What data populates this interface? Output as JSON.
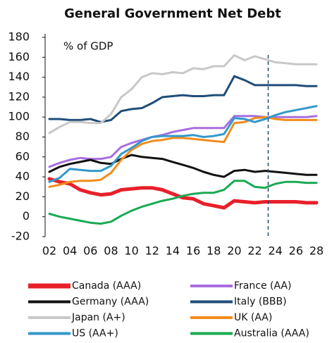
{
  "chart_data": {
    "type": "line",
    "title": "General Government Net Debt",
    "ylabel": "% of GDP",
    "x": [
      2,
      3,
      4,
      5,
      6,
      7,
      8,
      9,
      10,
      11,
      12,
      13,
      14,
      15,
      16,
      17,
      18,
      19,
      20,
      21,
      22,
      23,
      24,
      25,
      26,
      27,
      28
    ],
    "xlim": [
      2,
      28
    ],
    "xticks": [
      {
        "value": 2,
        "label": "02"
      },
      {
        "value": 4,
        "label": "04"
      },
      {
        "value": 6,
        "label": "06"
      },
      {
        "value": 8,
        "label": "08"
      },
      10,
      12,
      14,
      16,
      18,
      20,
      22,
      24,
      26,
      28
    ],
    "ylim": [
      -20,
      180
    ],
    "yticks": [
      -20,
      0,
      20,
      40,
      60,
      80,
      100,
      120,
      140,
      160,
      180
    ],
    "vline_x": 23.3,
    "grid": false,
    "series": [
      {
        "name": "Canada (AAA)",
        "color": "#e8202a",
        "values": [
          38,
          35,
          33,
          27,
          24,
          22,
          23,
          27,
          28,
          29,
          29,
          27,
          23,
          19,
          18,
          13,
          11,
          9,
          16,
          15,
          14,
          15,
          15,
          15,
          15,
          14,
          14
        ]
      },
      {
        "name": "France (AA)",
        "color": "#a86ee0",
        "values": [
          50,
          54,
          57,
          59,
          58,
          58,
          60,
          70,
          74,
          77,
          80,
          82,
          85,
          87,
          89,
          89,
          89,
          89,
          101,
          101,
          101,
          100,
          100,
          100,
          100,
          100,
          101
        ]
      },
      {
        "name": "Germany (AAA)",
        "color": "#111111",
        "values": [
          45,
          50,
          53,
          55,
          57,
          54,
          53,
          58,
          62,
          60,
          59,
          58,
          55,
          52,
          49,
          45,
          42,
          40,
          46,
          47,
          45,
          46,
          45,
          44,
          43,
          42,
          42
        ]
      },
      {
        "name": "Italy (BBB)",
        "color": "#1f4e79",
        "values": [
          98,
          98,
          97,
          97,
          98,
          95,
          97,
          106,
          108,
          109,
          114,
          120,
          121,
          122,
          121,
          121,
          122,
          122,
          141,
          137,
          132,
          132,
          132,
          132,
          132,
          131,
          131
        ]
      },
      {
        "name": "Japan (A+)",
        "color": "#c8c8c8",
        "values": [
          84,
          90,
          95,
          95,
          94,
          94,
          103,
          120,
          128,
          140,
          144,
          143,
          145,
          144,
          149,
          148,
          151,
          151,
          162,
          157,
          161,
          158,
          155,
          154,
          153,
          153,
          153
        ]
      },
      {
        "name": "UK (AA)",
        "color": "#f28c1c",
        "values": [
          30,
          32,
          35,
          36,
          36,
          37,
          44,
          57,
          67,
          73,
          76,
          77,
          79,
          79,
          78,
          77,
          76,
          75,
          94,
          95,
          99,
          100,
          98,
          97,
          97,
          97,
          97
        ]
      },
      {
        "name": "US (AA+)",
        "color": "#3399cc",
        "values": [
          35,
          39,
          48,
          47,
          46,
          46,
          51,
          63,
          69,
          76,
          80,
          81,
          81,
          81,
          82,
          80,
          81,
          83,
          99,
          98,
          95,
          98,
          102,
          105,
          107,
          109,
          111
        ]
      },
      {
        "name": "Australia (AAA)",
        "color": "#1aaa55",
        "values": [
          3,
          0,
          -2,
          -4,
          -6,
          -7,
          -5,
          1,
          6,
          10,
          13,
          16,
          18,
          21,
          23,
          24,
          24,
          27,
          36,
          36,
          30,
          29,
          33,
          35,
          35,
          34,
          34
        ]
      }
    ]
  }
}
